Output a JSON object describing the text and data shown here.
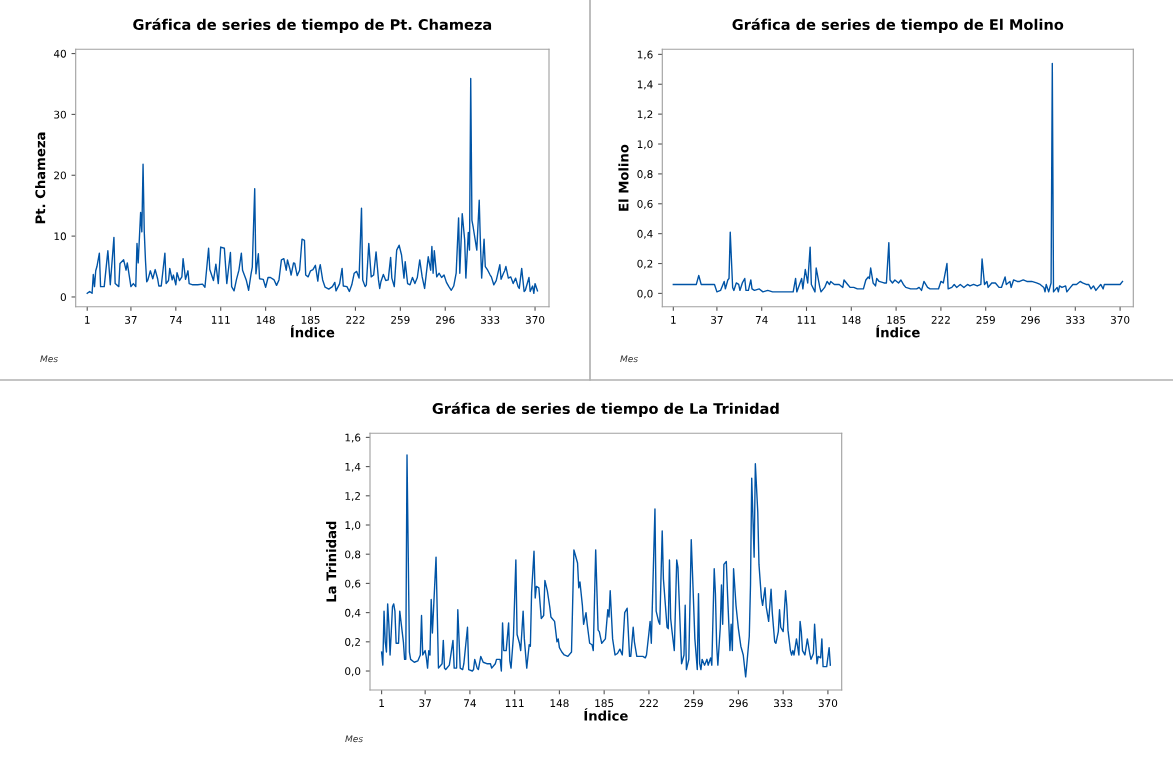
{
  "chart_data": [
    {
      "type": "line",
      "title": "Gráfica de series de tiempo de Pt. Chameza",
      "xlabel": "Índice",
      "ylabel": "Pt. Chameza",
      "annotations": [
        "Mes"
      ],
      "color": "#0054a6",
      "xlim": [
        -8.5,
        381.5
      ],
      "ylim": [
        -1.6,
        40.7
      ],
      "xticks": [
        1,
        37,
        74,
        111,
        148,
        185,
        222,
        259,
        296,
        333,
        370
      ],
      "yticks": [
        0,
        10,
        20,
        30,
        40
      ],
      "grid": false,
      "x": [
        1,
        3,
        5,
        6,
        7,
        8,
        9,
        11,
        12,
        15,
        18,
        20,
        23,
        24,
        27,
        28,
        31,
        33,
        34,
        36,
        37,
        39,
        41,
        42,
        43,
        45,
        46,
        47,
        48,
        49,
        50,
        51,
        53,
        55,
        57,
        59,
        60,
        62,
        65,
        66,
        68,
        69,
        71,
        72,
        74,
        75,
        77,
        79,
        80,
        82,
        84,
        85,
        88,
        92,
        96,
        98,
        101,
        102,
        105,
        107,
        109,
        111,
        114,
        116,
        117,
        119,
        120,
        122,
        124,
        126,
        128,
        129,
        132,
        134,
        136,
        137,
        139,
        140,
        142,
        143,
        146,
        148,
        150,
        152,
        155,
        157,
        159,
        161,
        163,
        165,
        166,
        168,
        169,
        171,
        172,
        174,
        176,
        178,
        180,
        181,
        183,
        185,
        187,
        189,
        191,
        192,
        193,
        195,
        197,
        200,
        203,
        205,
        206,
        209,
        211,
        212,
        215,
        217,
        219,
        221,
        223,
        225,
        227,
        228,
        230,
        231,
        233,
        235,
        237,
        239,
        241,
        242,
        243,
        245,
        247,
        249,
        251,
        252,
        254,
        256,
        258,
        260,
        262,
        263,
        265,
        267,
        269,
        271,
        273,
        275,
        277,
        279,
        282,
        284,
        285,
        286,
        287,
        289,
        291,
        293,
        295,
        297,
        299,
        301,
        303,
        305,
        307,
        308,
        310,
        312,
        313,
        315,
        316,
        317,
        318,
        319,
        322,
        324,
        325,
        326,
        328,
        329,
        331,
        333,
        334,
        336,
        338,
        341,
        342,
        344,
        345,
        346,
        348,
        350,
        352,
        354,
        356,
        357,
        359,
        361,
        362,
        365,
        366,
        368,
        369,
        370,
        372
      ],
      "values": [
        0.6,
        0.9,
        0.6,
        3.7,
        1.7,
        4.3,
        5,
        7.2,
        1.7,
        1.7,
        7.6,
        2,
        9.8,
        2.2,
        1.7,
        5.5,
        6.1,
        4.4,
        5.6,
        3,
        1.7,
        2.2,
        1.7,
        8.8,
        5.6,
        13.9,
        10.7,
        21.8,
        10.7,
        6,
        2.5,
        2.8,
        4.3,
        3,
        4.5,
        3,
        1.8,
        1.8,
        7.2,
        2.2,
        2.7,
        4.7,
        2.8,
        3.6,
        2,
        4,
        2.7,
        3.3,
        6.3,
        2.9,
        4.3,
        2.2,
        2,
        2,
        2.1,
        1.6,
        8,
        4.5,
        2.7,
        5.4,
        2.2,
        8.2,
        8,
        2.2,
        3.9,
        7.3,
        1.7,
        1,
        2.9,
        4.4,
        7.2,
        4.4,
        2.8,
        1.1,
        3.8,
        4.9,
        17.8,
        3.8,
        7.1,
        3,
        2.9,
        1.6,
        3.2,
        3.2,
        2.8,
        1.9,
        2.8,
        6.1,
        6.3,
        4.4,
        6.1,
        4.6,
        3.6,
        5.6,
        5.5,
        3.5,
        4.4,
        9.5,
        9.3,
        3.6,
        3.3,
        4.3,
        4.5,
        5.2,
        2.6,
        4.4,
        5.3,
        2.8,
        1.6,
        1.3,
        1.7,
        2.4,
        1,
        2.2,
        4.7,
        1.8,
        1.7,
        0.9,
        2,
        3.9,
        4.2,
        3.1,
        14.6,
        2.8,
        1.7,
        2,
        8.8,
        3.3,
        3.6,
        7.4,
        2.8,
        1.4,
        2.5,
        3.7,
        2.7,
        2.8,
        6.5,
        3.1,
        1.7,
        7.7,
        8.5,
        6.9,
        3.1,
        5.8,
        2.2,
        2,
        3.2,
        2.2,
        3.2,
        6.1,
        3.3,
        1.4,
        6.6,
        4.4,
        8.3,
        3.9,
        7.6,
        3.3,
        3.9,
        3.2,
        3.6,
        2.4,
        1.7,
        1.1,
        1.8,
        3.9,
        13,
        3.9,
        13.7,
        9.4,
        3.1,
        10.6,
        7.7,
        35.9,
        12.6,
        11.5,
        7.7,
        15.9,
        8.8,
        3.1,
        9.5,
        5,
        4.4,
        3.6,
        3.3,
        2,
        2.7,
        5.3,
        2.9,
        3.9,
        4.3,
        5,
        3.1,
        3.3,
        2.2,
        3.1,
        1.7,
        1.4,
        4.7,
        0.9,
        1.1,
        3.2,
        0.9,
        1.8,
        0.6,
        2.2,
        1
      ]
    },
    {
      "type": "line",
      "title": "Gráfica de series de tiempo de El Molino",
      "xlabel": "Índice",
      "ylabel": "El Molino",
      "annotations": [
        "Mes"
      ],
      "color": "#0054a6",
      "xlim": [
        -8.1,
        380.9
      ],
      "ylim": [
        -0.089,
        1.634
      ],
      "xticks": [
        1,
        37,
        74,
        111,
        148,
        185,
        222,
        259,
        296,
        333,
        370
      ],
      "yticks": [
        {
          "value": 0,
          "label": "0,0"
        },
        {
          "value": 0.2,
          "label": "0,2"
        },
        {
          "value": 0.4,
          "label": "0,4"
        },
        {
          "value": 0.6,
          "label": "0,6"
        },
        {
          "value": 0.8,
          "label": "0,8"
        },
        {
          "value": 1.0,
          "label": "1,0"
        },
        {
          "value": 1.2,
          "label": "1,2"
        },
        {
          "value": 1.4,
          "label": "1,4"
        },
        {
          "value": 1.6,
          "label": "1,6"
        }
      ],
      "grid": false,
      "x": [
        1,
        4,
        20,
        22,
        24,
        35,
        37,
        40,
        43,
        44,
        46,
        47,
        48,
        50,
        51,
        53,
        55,
        56,
        58,
        60,
        61,
        63,
        65,
        66,
        68,
        72,
        75,
        79,
        83,
        88,
        91,
        100,
        102,
        103,
        107,
        108,
        110,
        112,
        114,
        115,
        118,
        119,
        122,
        123,
        126,
        128,
        130,
        131,
        134,
        138,
        141,
        142,
        145,
        147,
        150,
        153,
        158,
        160,
        162,
        163,
        164,
        166,
        168,
        169,
        171,
        175,
        177,
        179,
        180,
        182,
        184,
        187,
        189,
        191,
        193,
        197,
        202,
        204,
        206,
        208,
        211,
        213,
        220,
        222,
        224,
        227,
        228,
        231,
        233,
        235,
        238,
        241,
        244,
        246,
        249,
        252,
        255,
        256,
        258,
        260,
        261,
        264,
        267,
        270,
        272,
        275,
        276,
        279,
        280,
        282,
        285,
        287,
        290,
        293,
        297,
        301,
        304,
        307,
        308,
        309,
        311,
        313,
        314,
        315,
        318,
        319,
        320,
        322,
        325,
        326,
        329,
        331,
        334,
        337,
        339,
        342,
        344,
        346,
        348,
        350,
        352,
        354,
        356,
        357,
        362,
        367,
        370,
        372
      ],
      "values": [
        0.06,
        0.06,
        0.06,
        0.12,
        0.06,
        0.06,
        0.01,
        0.02,
        0.08,
        0.03,
        0.09,
        0.1,
        0.41,
        0.04,
        0.02,
        0.07,
        0.06,
        0.02,
        0.07,
        0.1,
        0.02,
        0.02,
        0.09,
        0.03,
        0.02,
        0.03,
        0.01,
        0.02,
        0.01,
        0.01,
        0.01,
        0.01,
        0.1,
        0.01,
        0.1,
        0.03,
        0.16,
        0.07,
        0.31,
        0.06,
        0.01,
        0.17,
        0.04,
        0.01,
        0.04,
        0.08,
        0.06,
        0.08,
        0.06,
        0.06,
        0.04,
        0.09,
        0.06,
        0.04,
        0.04,
        0.03,
        0.03,
        0.09,
        0.11,
        0.1,
        0.17,
        0.07,
        0.05,
        0.1,
        0.08,
        0.07,
        0.07,
        0.34,
        0.09,
        0.07,
        0.09,
        0.07,
        0.09,
        0.06,
        0.04,
        0.03,
        0.03,
        0.04,
        0.02,
        0.08,
        0.04,
        0.03,
        0.03,
        0.08,
        0.07,
        0.2,
        0.03,
        0.04,
        0.06,
        0.04,
        0.06,
        0.04,
        0.06,
        0.05,
        0.06,
        0.05,
        0.06,
        0.23,
        0.06,
        0.08,
        0.04,
        0.07,
        0.07,
        0.04,
        0.04,
        0.11,
        0.06,
        0.08,
        0.04,
        0.09,
        0.08,
        0.08,
        0.09,
        0.08,
        0.08,
        0.07,
        0.06,
        0.04,
        0.01,
        0.06,
        0.01,
        0.07,
        1.54,
        0.01,
        0.04,
        0.01,
        0.05,
        0.04,
        0.05,
        0.01,
        0.04,
        0.06,
        0.06,
        0.08,
        0.07,
        0.06,
        0.06,
        0.03,
        0.05,
        0.02,
        0.04,
        0.06,
        0.03,
        0.06,
        0.06,
        0.06,
        0.06,
        0.08
      ]
    },
    {
      "type": "line",
      "title": "Gráfica de series de tiempo de La Trinidad",
      "xlabel": "Índice",
      "ylabel": "La Trinidad",
      "annotations": [
        "Mes"
      ],
      "color": "#0054a6",
      "xlim": [
        -8.6,
        381.4
      ],
      "ylim": [
        -0.13,
        1.628
      ],
      "xticks": [
        1,
        37,
        74,
        111,
        148,
        185,
        222,
        259,
        296,
        333,
        370
      ],
      "yticks": [
        {
          "value": 0,
          "label": "0,0"
        },
        {
          "value": 0.2,
          "label": "0,2"
        },
        {
          "value": 0.4,
          "label": "0,4"
        },
        {
          "value": 0.6,
          "label": "0,6"
        },
        {
          "value": 0.8,
          "label": "0,8"
        },
        {
          "value": 1.0,
          "label": "1,0"
        },
        {
          "value": 1.2,
          "label": "1,2"
        },
        {
          "value": 1.4,
          "label": "1,4"
        },
        {
          "value": 1.6,
          "label": "1,6"
        }
      ],
      "grid": false,
      "x": [
        1,
        2,
        3,
        4,
        5,
        6,
        7,
        8,
        9,
        10,
        11,
        12,
        13,
        15,
        16,
        17,
        19,
        20,
        21,
        22,
        24,
        25,
        28,
        31,
        33,
        34,
        35,
        37,
        38,
        39,
        40,
        41,
        42,
        43,
        46,
        48,
        51,
        52,
        53,
        54,
        57,
        60,
        61,
        63,
        64,
        66,
        68,
        69,
        72,
        73,
        76,
        77,
        78,
        80,
        81,
        83,
        85,
        88,
        91,
        92,
        95,
        96,
        99,
        100,
        101,
        102,
        104,
        106,
        107,
        108,
        110,
        112,
        113,
        115,
        116,
        118,
        119,
        121,
        123,
        124,
        125,
        127,
        128,
        129,
        131,
        133,
        135,
        136,
        138,
        140,
        141,
        142,
        144,
        146,
        147,
        148,
        150,
        152,
        155,
        158,
        160,
        161,
        163,
        164,
        165,
        167,
        168,
        170,
        171,
        173,
        175,
        176,
        178,
        180,
        181,
        183,
        186,
        188,
        189,
        190,
        192,
        194,
        196,
        198,
        200,
        202,
        204,
        206,
        207,
        209,
        210,
        212,
        217,
        219,
        220,
        222,
        223,
        224,
        227,
        228,
        230,
        231,
        233,
        234,
        237,
        238,
        239,
        240,
        241,
        243,
        245,
        246,
        248,
        249,
        251,
        252,
        253,
        255,
        257,
        258,
        260,
        262,
        263,
        264,
        265,
        266,
        268,
        270,
        271,
        273,
        274,
        276,
        277,
        278,
        279,
        281,
        282,
        283,
        284,
        286,
        287,
        289,
        290,
        291,
        292,
        294,
        295,
        296,
        298,
        300,
        302,
        303,
        305,
        306,
        307,
        309,
        310,
        312,
        313,
        315,
        316,
        318,
        319,
        321,
        323,
        324,
        326,
        327,
        329,
        330,
        331,
        333,
        335,
        336,
        337,
        339,
        340,
        341,
        342,
        344,
        346,
        347,
        348,
        349,
        351,
        353,
        355,
        356,
        358,
        359,
        361,
        362,
        364,
        365,
        366,
        369,
        371,
        372
      ],
      "values": [
        0.13,
        0.04,
        0.41,
        0.2,
        0.13,
        0.46,
        0.32,
        0.11,
        0.27,
        0.44,
        0.46,
        0.41,
        0.19,
        0.19,
        0.41,
        0.34,
        0.2,
        0.08,
        0.08,
        1.48,
        0.13,
        0.08,
        0.06,
        0.07,
        0.11,
        0.38,
        0.11,
        0.14,
        0.09,
        0.02,
        0.14,
        0.11,
        0.49,
        0.26,
        0.78,
        0.02,
        0.05,
        0.21,
        0.02,
        0.01,
        0.04,
        0.21,
        0.02,
        0.02,
        0.42,
        0.02,
        0.01,
        0.05,
        0.3,
        0.01,
        0,
        0.01,
        0.08,
        0.02,
        0.01,
        0.1,
        0.06,
        0.05,
        0.05,
        0.02,
        0.05,
        0.08,
        0.08,
        0,
        0.33,
        0.14,
        0.14,
        0.33,
        0.07,
        0.02,
        0.24,
        0.76,
        0.25,
        0.19,
        0.14,
        0.41,
        0.22,
        0.02,
        0.18,
        0.17,
        0.54,
        0.82,
        0.5,
        0.58,
        0.57,
        0.36,
        0.38,
        0.62,
        0.55,
        0.44,
        0.37,
        0.36,
        0.34,
        0.2,
        0.22,
        0.16,
        0.13,
        0.11,
        0.1,
        0.13,
        0.83,
        0.8,
        0.74,
        0.57,
        0.61,
        0.45,
        0.32,
        0.4,
        0.32,
        0.19,
        0.18,
        0.14,
        0.83,
        0.28,
        0.27,
        0.19,
        0.22,
        0.42,
        0.37,
        0.55,
        0.22,
        0.11,
        0.12,
        0.15,
        0.11,
        0.4,
        0.43,
        0.1,
        0.1,
        0.3,
        0.2,
        0.1,
        0.1,
        0.09,
        0.11,
        0.26,
        0.34,
        0.19,
        1.11,
        0.41,
        0.34,
        0.32,
        0.96,
        0.63,
        0.3,
        0.29,
        0.76,
        0.36,
        0.28,
        0.14,
        0.76,
        0.71,
        0.27,
        0.05,
        0.11,
        0.45,
        0.01,
        0.08,
        0.9,
        0.68,
        0.22,
        0.01,
        0.53,
        0.05,
        0.01,
        0.08,
        0.04,
        0.08,
        0.04,
        0.09,
        0.04,
        0.7,
        0.53,
        0.18,
        0.04,
        0.3,
        0.59,
        0.32,
        0.73,
        0.75,
        0.53,
        0.14,
        0.32,
        0.14,
        0.7,
        0.45,
        0.37,
        0.29,
        0.17,
        0.11,
        -0.04,
        0.05,
        0.24,
        0.59,
        1.32,
        0.78,
        1.42,
        1.09,
        0.73,
        0.5,
        0.45,
        0.57,
        0.44,
        0.34,
        0.56,
        0.4,
        0.2,
        0.19,
        0.27,
        0.42,
        0.3,
        0.27,
        0.55,
        0.45,
        0.28,
        0.14,
        0.11,
        0.14,
        0.11,
        0.22,
        0.11,
        0.34,
        0.27,
        0.14,
        0.11,
        0.22,
        0.12,
        0.08,
        0.12,
        0.32,
        0.05,
        0.1,
        0.09,
        0.22,
        0.03,
        0.03,
        0.16,
        0.04
      ]
    }
  ]
}
